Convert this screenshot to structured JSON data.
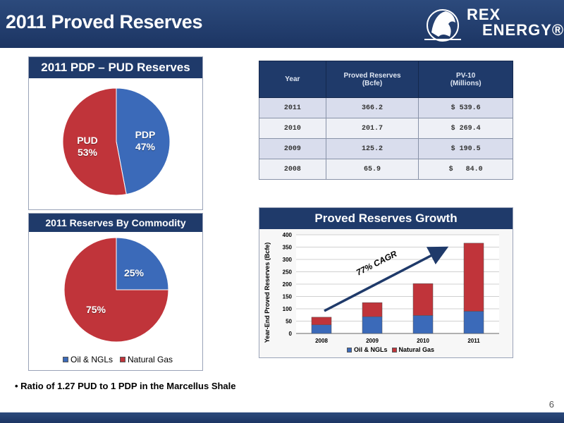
{
  "header": {
    "title": "2011 Proved Reserves",
    "logo_line1": "REX",
    "logo_line2": "ENERGY®"
  },
  "pdp_pud": {
    "title": "2011 PDP – PUD Reserves",
    "slices": [
      {
        "label": "PDP",
        "pct": "47%",
        "value": 47,
        "color": "#3b6ab9"
      },
      {
        "label": "PUD",
        "pct": "53%",
        "value": 53,
        "color": "#c0343a"
      }
    ]
  },
  "commodity": {
    "title": "2011 Reserves By Commodity",
    "slices": [
      {
        "label": "Oil & NGLs",
        "pct": "25%",
        "value": 25,
        "color": "#3b6ab9"
      },
      {
        "label": "Natural Gas",
        "pct": "75%",
        "value": 75,
        "color": "#c0343a"
      }
    ],
    "legend": [
      "Oil & NGLs",
      "Natural Gas"
    ]
  },
  "table": {
    "headers": [
      "Year",
      "Proved Reserves (Bcfe)",
      "PV-10 (Millions)"
    ],
    "header_lines": [
      [
        "Year"
      ],
      [
        "Proved Reserves",
        "(Bcfe)"
      ],
      [
        "PV-10",
        "(Millions)"
      ]
    ],
    "rows": [
      [
        "2011",
        "366.2",
        "$ 539.6"
      ],
      [
        "2010",
        "201.7",
        "$ 269.4"
      ],
      [
        "2009",
        "125.2",
        "$ 190.5"
      ],
      [
        "2008",
        "65.9",
        "$   84.0"
      ]
    ]
  },
  "growth": {
    "title": "Proved Reserves Growth",
    "annotation": "77% CAGR"
  },
  "footer": {
    "bullet": "• Ratio of 1.27 PUD to 1 PDP in the Marcellus Shale",
    "page": "6"
  },
  "chart_data": [
    {
      "type": "pie",
      "title": "2011 PDP – PUD Reserves",
      "labels": [
        "PDP",
        "PUD"
      ],
      "values": [
        47,
        53
      ]
    },
    {
      "type": "pie",
      "title": "2011 Reserves By Commodity",
      "labels": [
        "Oil & NGLs",
        "Natural Gas"
      ],
      "values": [
        25,
        75
      ],
      "legend": "bottom"
    },
    {
      "type": "bar",
      "stacked": true,
      "title": "Proved Reserves Growth",
      "categories": [
        "2008",
        "2009",
        "2010",
        "2011"
      ],
      "series": [
        {
          "name": "Oil & NGLs",
          "values": [
            35,
            68,
            73,
            90
          ],
          "color": "#3b6ab9"
        },
        {
          "name": "Natural Gas",
          "values": [
            31,
            57,
            129,
            276
          ],
          "color": "#c0343a"
        }
      ],
      "ylabel": "Year-End Proved Reserves (Bcfe)",
      "ylim": [
        0,
        400
      ],
      "yticks": [
        0,
        50,
        100,
        150,
        200,
        250,
        300,
        350,
        400
      ],
      "legend": "bottom",
      "annotation": "77% CAGR"
    }
  ]
}
